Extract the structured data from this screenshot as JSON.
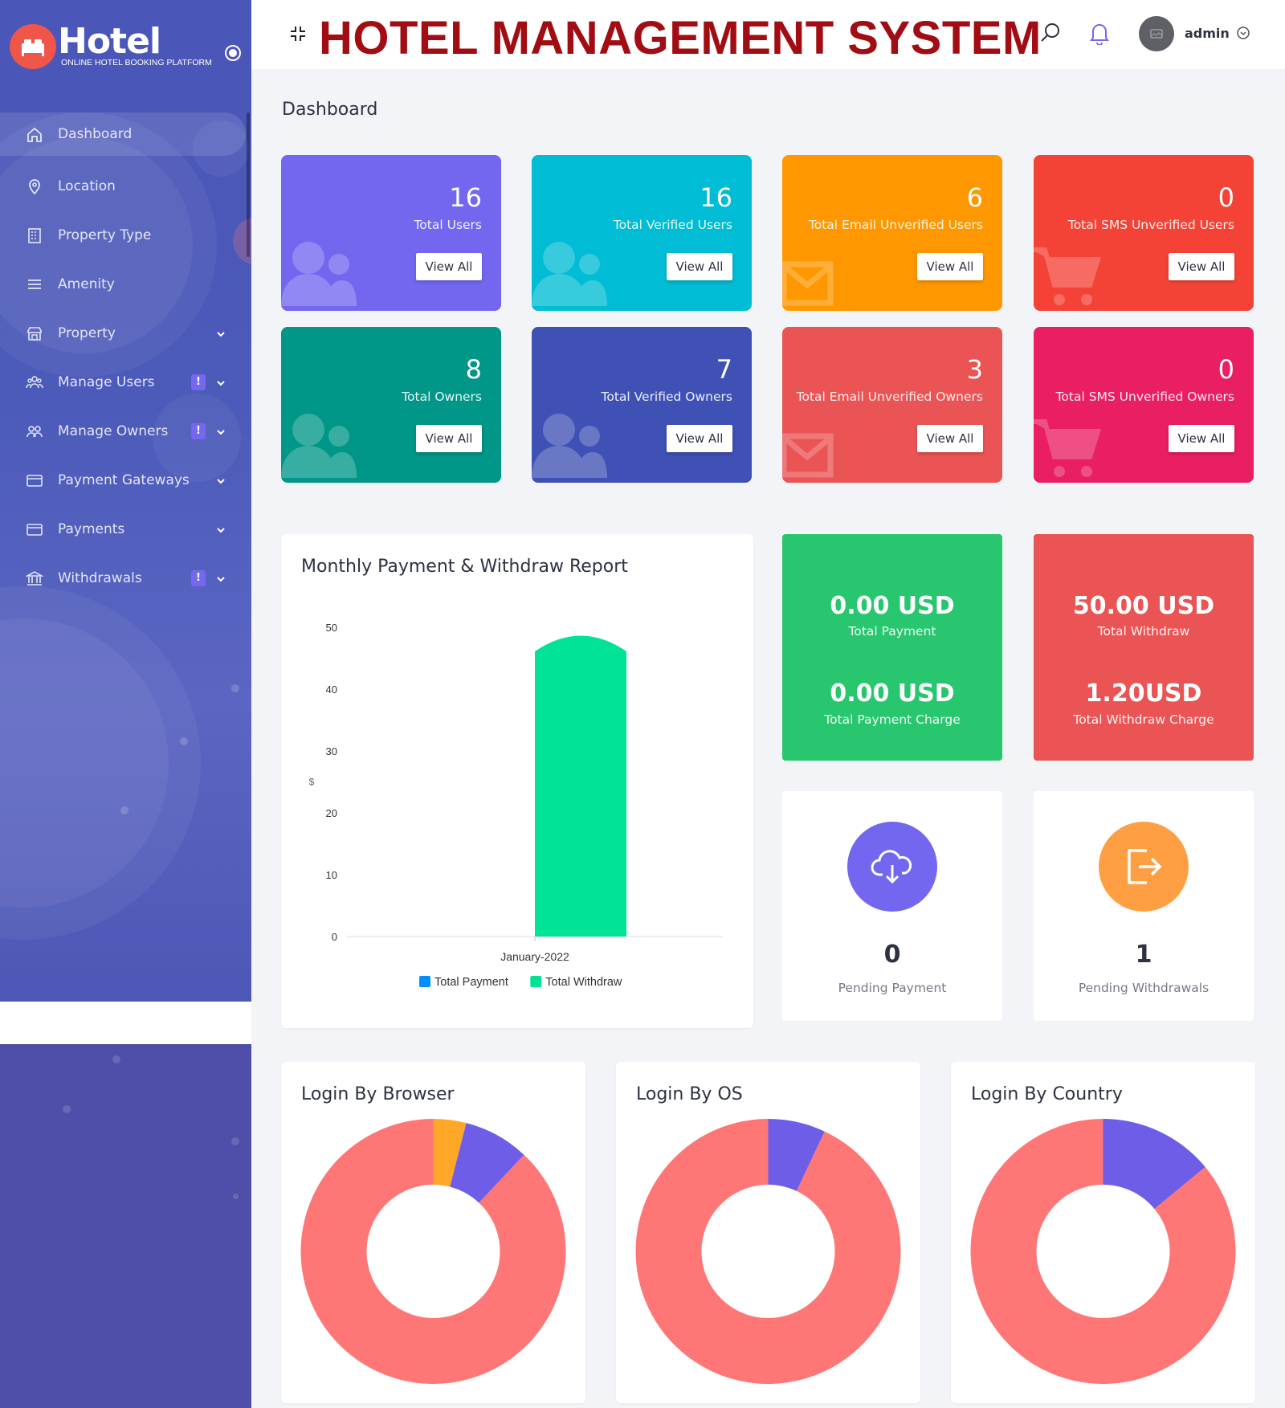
{
  "brand": {
    "title": "Hotel",
    "subtitle": "ONLINE HOTEL BOOKING PLATFORM"
  },
  "header": {
    "title": "HOTEL MANAGEMENT SYSTEM",
    "user": "admin"
  },
  "page_title": "Dashboard",
  "sidebar": {
    "items": [
      {
        "label": "Dashboard",
        "icon": "home-icon",
        "active": true
      },
      {
        "label": "Location",
        "icon": "map-pin-icon"
      },
      {
        "label": "Property Type",
        "icon": "building-icon"
      },
      {
        "label": "Amenity",
        "icon": "list-icon"
      },
      {
        "label": "Property",
        "icon": "store-icon",
        "chevron": true
      },
      {
        "label": "Manage Users",
        "icon": "users-icon",
        "badge": "!",
        "chevron": true
      },
      {
        "label": "Manage Owners",
        "icon": "owners-icon",
        "badge": "!",
        "chevron": true
      },
      {
        "label": "Payment Gateways",
        "icon": "credit-card-icon",
        "chevron": true
      },
      {
        "label": "Payments",
        "icon": "wallet-icon",
        "chevron": true
      },
      {
        "label": "Withdrawals",
        "icon": "bank-icon",
        "badge": "!",
        "chevron": true
      }
    ]
  },
  "stats": [
    {
      "value": "16",
      "label": "Total Users",
      "button": "View All",
      "color": "#7367f0",
      "bg_icon": "users"
    },
    {
      "value": "16",
      "label": "Total Verified Users",
      "button": "View All",
      "color": "#00bcd4",
      "bg_icon": "users"
    },
    {
      "value": "6",
      "label": "Total Email Unverified Users",
      "button": "View All",
      "color": "#ff9800",
      "bg_icon": "mail"
    },
    {
      "value": "0",
      "label": "Total SMS Unverified Users",
      "button": "View All",
      "color": "#f44336",
      "bg_icon": "cart"
    },
    {
      "value": "8",
      "label": "Total Owners",
      "button": "View All",
      "color": "#009688",
      "bg_icon": "users"
    },
    {
      "value": "7",
      "label": "Total Verified Owners",
      "button": "View All",
      "color": "#3f51b5",
      "bg_icon": "users"
    },
    {
      "value": "3",
      "label": "Total Email Unverified Owners",
      "button": "View All",
      "color": "#ea5455",
      "bg_icon": "mail"
    },
    {
      "value": "0",
      "label": "Total SMS Unverified Owners",
      "button": "View All",
      "color": "#e91e63",
      "bg_icon": "cart"
    }
  ],
  "monthly_report": {
    "title": "Monthly Payment & Withdraw Report",
    "y_axis_symbol": "$"
  },
  "chart_data": [
    {
      "type": "bar",
      "title": "Monthly Payment & Withdraw Report",
      "categories": [
        "January-2022"
      ],
      "series": [
        {
          "name": "Total Payment",
          "values": [
            0
          ],
          "color": "#008ffb"
        },
        {
          "name": "Total Withdraw",
          "values": [
            50
          ],
          "color": "#00e396"
        }
      ],
      "ylabel": "$",
      "ylim": [
        0,
        50
      ],
      "yticks": [
        0,
        10,
        20,
        30,
        40,
        50
      ],
      "grid": false,
      "legend": "bottom"
    },
    {
      "type": "pie",
      "title": "Login By Browser",
      "slices": [
        {
          "value": 88,
          "color": "#ff7676"
        },
        {
          "value": 8,
          "color": "#6e5de7"
        },
        {
          "value": 4,
          "color": "#ffa726"
        }
      ]
    },
    {
      "type": "pie",
      "title": "Login By OS",
      "slices": [
        {
          "value": 93,
          "color": "#ff7676"
        },
        {
          "value": 7,
          "color": "#6e5de7"
        }
      ]
    },
    {
      "type": "pie",
      "title": "Login By Country",
      "slices": [
        {
          "value": 86,
          "color": "#ff7676"
        },
        {
          "value": 14,
          "color": "#6e5de7"
        }
      ]
    }
  ],
  "summaries": [
    {
      "value1": "0.00 USD",
      "label1": "Total Payment",
      "value2": "0.00 USD",
      "label2": "Total Payment Charge",
      "color": "#28c76f"
    },
    {
      "value1": "50.00 USD",
      "label1": "Total Withdraw",
      "value2": "1.20USD",
      "label2": "Total Withdraw Charge",
      "color": "#ea5455"
    }
  ],
  "pending": [
    {
      "value": "0",
      "label": "Pending Payment",
      "color": "#7367f0",
      "icon": "cloud-download-icon"
    },
    {
      "value": "1",
      "label": "Pending Withdrawals",
      "color": "#ff9f43",
      "icon": "sign-out-icon"
    }
  ]
}
